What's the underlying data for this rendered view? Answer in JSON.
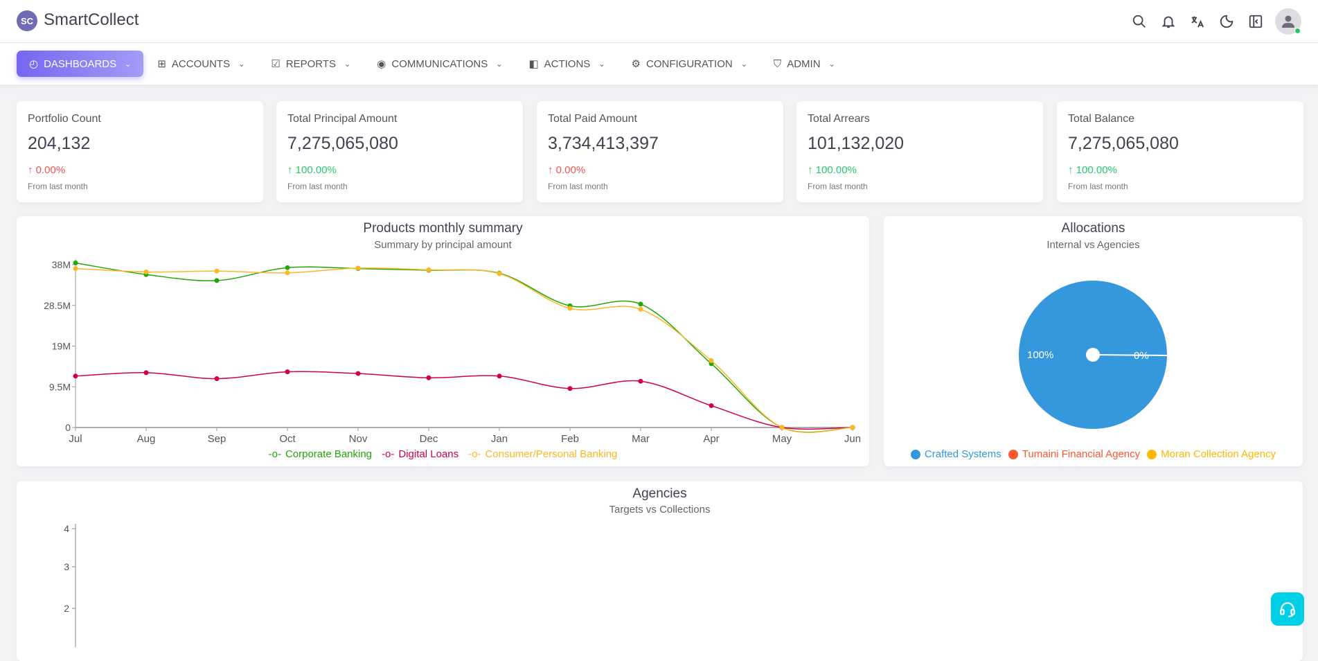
{
  "app": {
    "title": "SmartCollect",
    "logo_text": "SC"
  },
  "header_icons": [
    "search-icon",
    "bell-icon",
    "translate-icon",
    "moon-icon",
    "sidebar-collapse-icon",
    "user-avatar"
  ],
  "nav": [
    {
      "label": "Dashboards",
      "icon": "dashboard-icon",
      "active": true
    },
    {
      "label": "Accounts",
      "icon": "grid-plus-icon"
    },
    {
      "label": "Reports",
      "icon": "checkbox-icon"
    },
    {
      "label": "Communications",
      "icon": "broadcast-icon"
    },
    {
      "label": "Actions",
      "icon": "actions-icon"
    },
    {
      "label": "Configuration",
      "icon": "gear-icon"
    },
    {
      "label": "Admin",
      "icon": "shield-icon"
    }
  ],
  "stats": [
    {
      "label": "Portfolio Count",
      "value": "204,132",
      "change": "↑ 0.00%",
      "trend": "down",
      "sub": "From last month"
    },
    {
      "label": "Total Principal Amount",
      "value": "7,275,065,080",
      "change": "↑ 100.00%",
      "trend": "up",
      "sub": "From last month"
    },
    {
      "label": "Total Paid Amount",
      "value": "3,734,413,397",
      "change": "↑ 0.00%",
      "trend": "down",
      "sub": "From last month"
    },
    {
      "label": "Total Arrears",
      "value": "101,132,020",
      "change": "↑ 100.00%",
      "trend": "up",
      "sub": "From last month"
    },
    {
      "label": "Total Balance",
      "value": "7,275,065,080",
      "change": "↑ 100.00%",
      "trend": "up",
      "sub": "From last month"
    }
  ],
  "colors": {
    "up": "#28c76f",
    "down": "#ea5455",
    "accent": "#7367f0"
  },
  "chart_data": [
    {
      "type": "line",
      "title": "Products monthly summary",
      "subtitle": "Summary by principal amount",
      "categories": [
        "Jul",
        "Aug",
        "Sep",
        "Oct",
        "Nov",
        "Dec",
        "Jan",
        "Feb",
        "Mar",
        "Apr",
        "May",
        "Jun"
      ],
      "yticks": [
        {
          "v": 0,
          "label": "0"
        },
        {
          "v": 9.5,
          "label": "9.5M"
        },
        {
          "v": 19,
          "label": "19M"
        },
        {
          "v": 28.5,
          "label": "28.5M"
        },
        {
          "v": 38,
          "label": "38M"
        }
      ],
      "ylim": [
        0,
        38
      ],
      "yunit": "M",
      "legend": "bottom",
      "series": [
        {
          "name": "Corporate Banking",
          "color": "#22a608",
          "values": [
            38.4,
            35.7,
            34.3,
            37.3,
            37.1,
            36.7,
            36.0,
            28.4,
            28.8,
            14.9,
            0,
            0
          ]
        },
        {
          "name": "Digital Loans",
          "color": "#d1004b",
          "values": [
            12.0,
            12.8,
            11.4,
            13.0,
            12.6,
            11.6,
            12.0,
            9.1,
            10.8,
            5.1,
            0,
            0
          ]
        },
        {
          "name": "Consumer/Personal Banking",
          "color": "#fbb726",
          "values": [
            37.1,
            36.3,
            36.5,
            36.1,
            37.2,
            36.8,
            35.9,
            27.8,
            27.6,
            15.6,
            0,
            0
          ]
        }
      ]
    },
    {
      "type": "pie",
      "title": "Allocations",
      "subtitle": "Internal vs Agencies",
      "legend": "bottom",
      "slices": [
        {
          "name": "Crafted Systems",
          "value": 100,
          "label": "100%",
          "color": "#3598dc"
        },
        {
          "name": "Tumaini Financial Agency",
          "value": 0,
          "label": "0%",
          "color": "#ff5733"
        },
        {
          "name": "Moran Collection Agency",
          "value": 0,
          "label": "0%",
          "color": "#ffb800"
        }
      ]
    },
    {
      "type": "bar",
      "title": "Agencies",
      "subtitle": "Targets vs Collections",
      "yticks": [
        "2",
        "3",
        "4"
      ],
      "ylim": [
        0,
        4
      ]
    }
  ]
}
